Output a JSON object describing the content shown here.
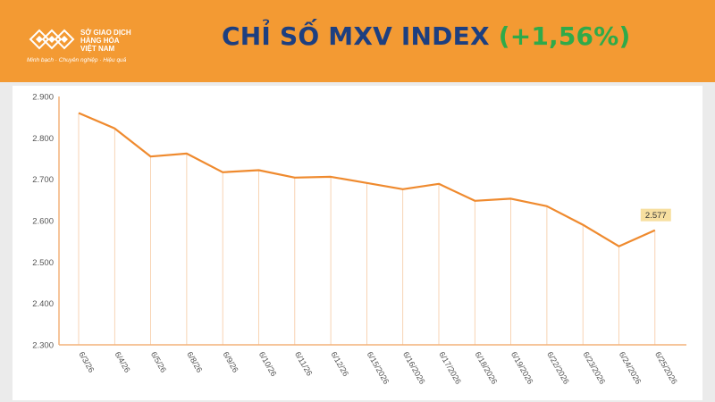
{
  "header": {
    "title": "CHỈ SỐ MXV INDEX",
    "change": "(+1,56%)",
    "logo": {
      "line1": "SỞ GIAO DỊCH",
      "line2": "HÀNG HÓA",
      "line3": "VIỆT NAM",
      "tagline": "Minh bạch · Chuyên nghiệp · Hiệu quả"
    }
  },
  "colors": {
    "header_bg": "#f39a33",
    "title": "#1d3f80",
    "change_positive": "#2faa4a",
    "line": "#ef8a2e",
    "label_bg": "#f7dfa0"
  },
  "chart_data": {
    "type": "line",
    "title": "",
    "xlabel": "",
    "ylabel": "",
    "ylim": [
      2300,
      2900
    ],
    "yticks": [
      "2.300",
      "2.400",
      "2.500",
      "2.600",
      "2.700",
      "2.800",
      "2.900"
    ],
    "grid": false,
    "categories": [
      "6/3/26",
      "6/4/26",
      "6/5/26",
      "6/8/26",
      "6/9/26",
      "6/10/26",
      "6/11/26",
      "6/12/26",
      "6/15/2026",
      "6/16/2026",
      "6/17/2026",
      "6/18/2026",
      "6/19/2026",
      "6/22/2026",
      "6/23/2026",
      "6/24/2026",
      "6/25/2026"
    ],
    "values": [
      2860,
      2823,
      2755,
      2762,
      2717,
      2722,
      2704,
      2706,
      2691,
      2676,
      2689,
      2648,
      2653,
      2635,
      2590,
      2538,
      2577
    ],
    "last_label": "2.577"
  }
}
